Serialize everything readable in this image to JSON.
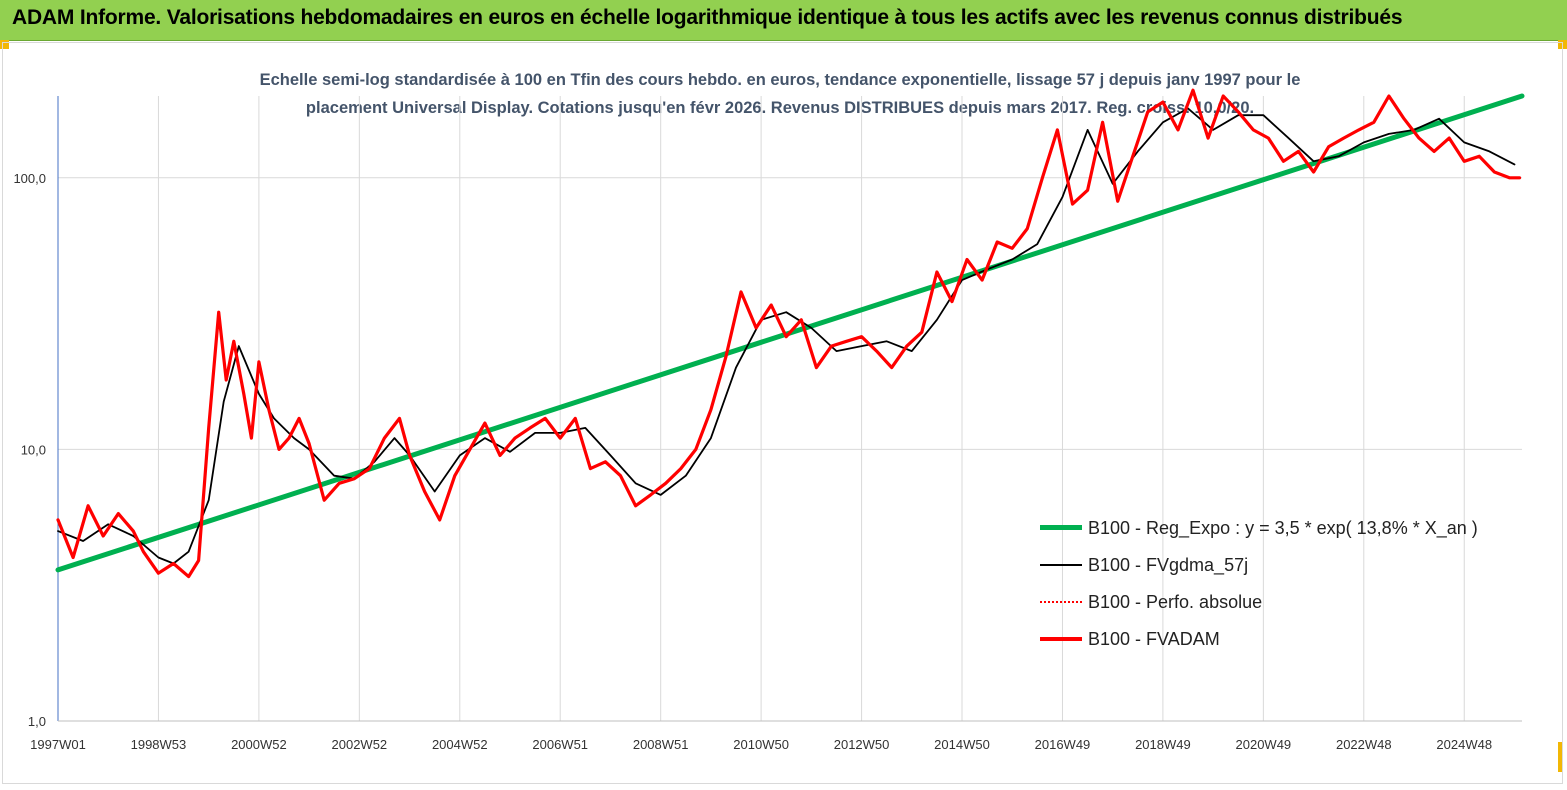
{
  "header": {
    "title": "ADAM Informe. Valorisations hebdomadaires en euros en échelle logarithmique identique à tous les actifs avec les revenus connus distribués"
  },
  "chart_data": {
    "type": "line",
    "subtitle_lines": [
      "Echelle semi-log standardisée à 100 en Tfin des cours hebdo. en euros, tendance exponentielle, lissage 57 j depuis janv 1997 pour le",
      "placement Universal Display. Cotations jusqu'en févr 2026.  Revenus DISTRIBUES depuis mars 2017. Reg. croiss. 10,0/20."
    ],
    "y_scale": "log",
    "ylim": [
      1,
      200
    ],
    "y_ticks": [
      {
        "value": 1,
        "label": "1,0"
      },
      {
        "value": 10,
        "label": "10,0"
      },
      {
        "value": 100,
        "label": "100,0"
      }
    ],
    "xlim": [
      1997.0,
      2026.15
    ],
    "x_ticks": [
      {
        "value": 1997.0,
        "label": "1997W01"
      },
      {
        "value": 1999.0,
        "label": "1998W53"
      },
      {
        "value": 2001.0,
        "label": "2000W52"
      },
      {
        "value": 2003.0,
        "label": "2002W52"
      },
      {
        "value": 2005.0,
        "label": "2004W52"
      },
      {
        "value": 2007.0,
        "label": "2006W51"
      },
      {
        "value": 2009.0,
        "label": "2008W51"
      },
      {
        "value": 2011.0,
        "label": "2010W50"
      },
      {
        "value": 2013.0,
        "label": "2012W50"
      },
      {
        "value": 2015.0,
        "label": "2014W50"
      },
      {
        "value": 2017.0,
        "label": "2016W49"
      },
      {
        "value": 2019.0,
        "label": "2018W49"
      },
      {
        "value": 2021.0,
        "label": "2020W49"
      },
      {
        "value": 2023.0,
        "label": "2022W48"
      },
      {
        "value": 2025.0,
        "label": "2024W48"
      }
    ],
    "grid": "vertical",
    "legend_position": "bottom-right",
    "series": [
      {
        "name": "B100 - Reg_Expo : y = 3,5 * exp( 13,8% *  X_an )",
        "color": "#00b050",
        "style": "solid-thick",
        "x": [
          1997.0,
          2026.15
        ],
        "y": [
          3.6,
          200
        ]
      },
      {
        "name": "B100 - FVgdma_57j",
        "color": "#000000",
        "style": "solid-thin",
        "x": [
          1997.0,
          1997.5,
          1998.0,
          1998.5,
          1999.0,
          1999.3,
          1999.6,
          2000.0,
          2000.3,
          2000.6,
          2001.0,
          2001.3,
          2001.7,
          2002.0,
          2002.5,
          2002.9,
          2003.3,
          2003.7,
          2004.0,
          2004.5,
          2005.0,
          2005.5,
          2006.0,
          2006.5,
          2007.0,
          2007.5,
          2008.0,
          2008.5,
          2009.0,
          2009.5,
          2010.0,
          2010.5,
          2011.0,
          2011.5,
          2012.0,
          2012.5,
          2013.0,
          2013.5,
          2014.0,
          2014.5,
          2015.0,
          2015.5,
          2016.0,
          2016.5,
          2017.0,
          2017.5,
          2018.0,
          2018.5,
          2019.0,
          2019.5,
          2020.0,
          2020.5,
          2021.0,
          2021.5,
          2022.0,
          2022.5,
          2023.0,
          2023.5,
          2024.0,
          2024.5,
          2025.0,
          2025.5,
          2026.0
        ],
        "y": [
          5.0,
          4.6,
          5.3,
          4.8,
          4.0,
          3.8,
          4.2,
          6.5,
          15,
          24,
          16,
          13,
          11,
          10,
          8.0,
          7.8,
          9.0,
          11,
          9.5,
          7.0,
          9.5,
          11,
          9.8,
          11.5,
          11.5,
          12,
          9.5,
          7.5,
          6.8,
          8.0,
          11,
          20,
          30,
          32,
          28,
          23,
          24,
          25,
          23,
          30,
          42,
          46,
          50,
          57,
          85,
          150,
          95,
          125,
          160,
          180,
          150,
          170,
          170,
          140,
          115,
          120,
          135,
          145,
          150,
          165,
          135,
          125,
          112
        ]
      },
      {
        "name": "B100 - Perfo. absolue",
        "color": "#ff0000",
        "style": "dotted",
        "x": [],
        "y": []
      },
      {
        "name": "B100 - FVADAM",
        "color": "#ff0000",
        "style": "solid-thick",
        "x": [
          1997.0,
          1997.3,
          1997.6,
          1997.9,
          1998.2,
          1998.5,
          1998.7,
          1999.0,
          1999.3,
          1999.6,
          1999.8,
          2000.0,
          2000.2,
          2000.35,
          2000.5,
          2000.7,
          2000.85,
          2001.0,
          2001.2,
          2001.4,
          2001.6,
          2001.8,
          2002.0,
          2002.3,
          2002.6,
          2002.9,
          2003.2,
          2003.5,
          2003.8,
          2004.0,
          2004.3,
          2004.6,
          2004.9,
          2005.2,
          2005.5,
          2005.8,
          2006.1,
          2006.4,
          2006.7,
          2007.0,
          2007.3,
          2007.6,
          2007.9,
          2008.2,
          2008.5,
          2008.8,
          2009.1,
          2009.4,
          2009.7,
          2010.0,
          2010.3,
          2010.6,
          2010.9,
          2011.2,
          2011.5,
          2011.8,
          2012.1,
          2012.4,
          2012.7,
          2013.0,
          2013.3,
          2013.6,
          2013.9,
          2014.2,
          2014.5,
          2014.8,
          2015.1,
          2015.4,
          2015.7,
          2016.0,
          2016.3,
          2016.6,
          2016.9,
          2017.2,
          2017.5,
          2017.8,
          2018.1,
          2018.4,
          2018.7,
          2019.0,
          2019.3,
          2019.6,
          2019.9,
          2020.2,
          2020.5,
          2020.8,
          2021.1,
          2021.4,
          2021.7,
          2022.0,
          2022.3,
          2022.6,
          2022.9,
          2023.2,
          2023.5,
          2023.8,
          2024.1,
          2024.4,
          2024.7,
          2025.0,
          2025.3,
          2025.6,
          2025.9,
          2026.1
        ],
        "y": [
          5.5,
          4.0,
          6.2,
          4.8,
          5.8,
          5.0,
          4.2,
          3.5,
          3.8,
          3.4,
          3.9,
          12,
          32,
          18,
          25,
          16,
          11,
          21,
          14,
          10,
          11,
          13,
          10.5,
          6.5,
          7.5,
          7.8,
          8.5,
          11,
          13,
          9.5,
          7.0,
          5.5,
          8.0,
          10,
          12.5,
          9.5,
          11,
          12,
          13,
          11,
          13,
          8.5,
          9.0,
          8.0,
          6.2,
          6.8,
          7.5,
          8.5,
          10,
          14,
          22,
          38,
          28,
          34,
          26,
          30,
          20,
          24,
          25,
          26,
          23,
          20,
          24,
          27,
          45,
          35,
          50,
          42,
          58,
          55,
          65,
          100,
          150,
          80,
          90,
          160,
          82,
          120,
          175,
          190,
          150,
          210,
          140,
          200,
          175,
          150,
          140,
          115,
          125,
          105,
          130,
          140,
          150,
          160,
          200,
          165,
          140,
          125,
          140,
          115,
          120,
          105,
          100,
          100
        ]
      }
    ]
  }
}
